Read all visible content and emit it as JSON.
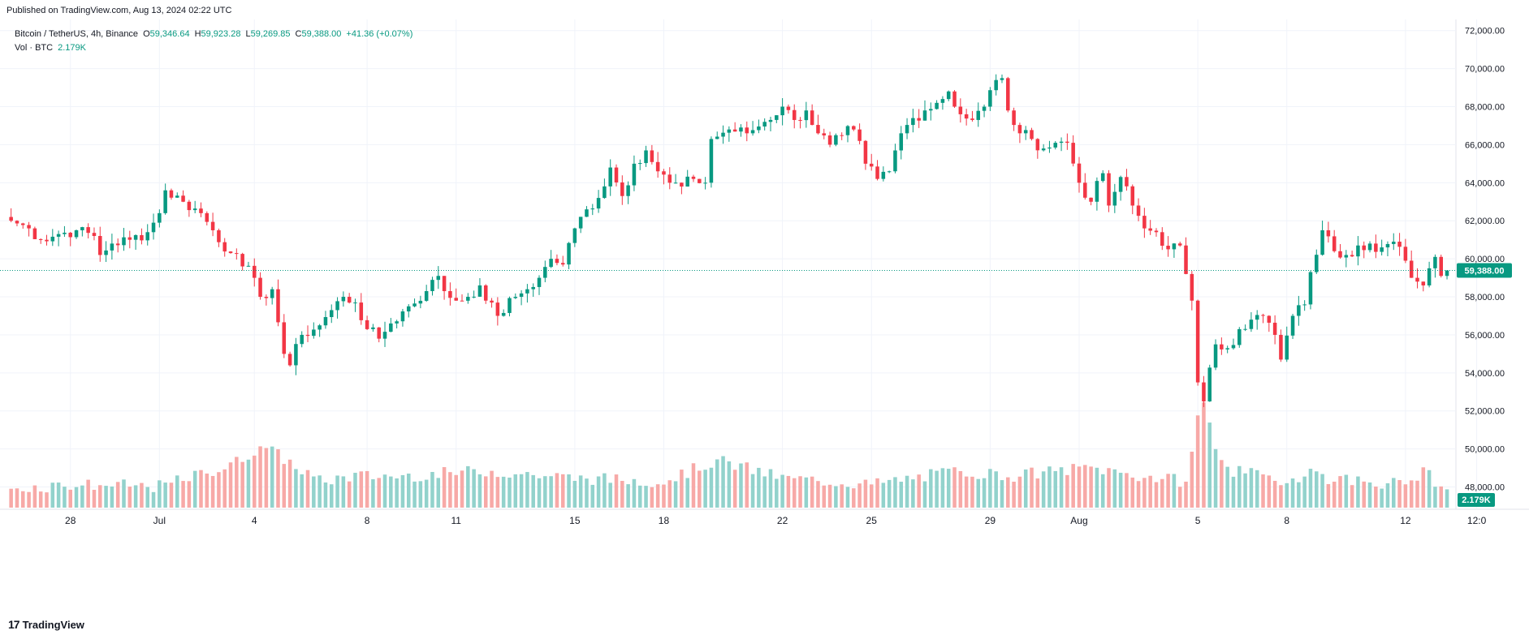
{
  "published": "Published on TradingView.com, Aug 13, 2024 02:22 UTC",
  "legend": {
    "symbol": "Bitcoin / TetherUS, 4h, Binance",
    "o_label": "O",
    "o": "59,346.64",
    "h_label": "H",
    "h": "59,923.28",
    "l_label": "L",
    "l": "59,269.85",
    "c_label": "C",
    "c": "59,388.00",
    "change": "+41.36 (+0.07%)",
    "vol_label": "Vol · BTC",
    "vol": "2.179K"
  },
  "footer_brand": "TradingView",
  "colors": {
    "up": "#089981",
    "down": "#f23645",
    "up_vol": "#92d2cc",
    "down_vol": "#f7a9a7",
    "grid": "#f0f3fa"
  },
  "chart_data": {
    "type": "candlestick",
    "symbol": "Bitcoin / TetherUS",
    "interval": "4h",
    "exchange": "Binance",
    "ylim": [
      47000,
      72500
    ],
    "y_ticks": [
      48000,
      50000,
      52000,
      54000,
      56000,
      58000,
      60000,
      62000,
      64000,
      66000,
      68000,
      70000,
      72000
    ],
    "y_tick_labels": [
      "48,000.00",
      "50,000.00",
      "52,000.00",
      "54,000.00",
      "56,000.00",
      "58,000.00",
      "60,000.00",
      "62,000.00",
      "64,000.00",
      "66,000.00",
      "68,000.00",
      "70,000.00",
      "72,000.00"
    ],
    "x_ticks": [
      {
        "i": 10,
        "label": "28"
      },
      {
        "i": 25,
        "label": "Jul"
      },
      {
        "i": 41,
        "label": "4"
      },
      {
        "i": 60,
        "label": "8"
      },
      {
        "i": 75,
        "label": "11"
      },
      {
        "i": 95,
        "label": "15"
      },
      {
        "i": 110,
        "label": "18"
      },
      {
        "i": 130,
        "label": "22"
      },
      {
        "i": 145,
        "label": "25"
      },
      {
        "i": 165,
        "label": "29"
      },
      {
        "i": 180,
        "label": "Aug"
      },
      {
        "i": 200,
        "label": "5"
      },
      {
        "i": 215,
        "label": "8"
      },
      {
        "i": 235,
        "label": "12"
      },
      {
        "i": 247,
        "label": "12:0"
      }
    ],
    "last_price_label": "59,388.00",
    "last_price": 59388,
    "last_volume_label": "2.179K",
    "close_path": [
      [
        0,
        62000
      ],
      [
        3,
        61600
      ],
      [
        5,
        61000
      ],
      [
        8,
        61300
      ],
      [
        11,
        61500
      ],
      [
        14,
        61200
      ],
      [
        15,
        60200
      ],
      [
        17,
        60800
      ],
      [
        20,
        61000
      ],
      [
        23,
        61400
      ],
      [
        25,
        62400
      ],
      [
        26,
        63600
      ],
      [
        29,
        63000
      ],
      [
        32,
        62400
      ],
      [
        34,
        61500
      ],
      [
        37,
        60300
      ],
      [
        39,
        59600
      ],
      [
        41,
        59000
      ],
      [
        42,
        58000
      ],
      [
        44,
        58400
      ],
      [
        46,
        55000
      ],
      [
        47,
        54400
      ],
      [
        49,
        56000
      ],
      [
        52,
        56500
      ],
      [
        54,
        57300
      ],
      [
        56,
        58000
      ],
      [
        58,
        57700
      ],
      [
        60,
        56300
      ],
      [
        62,
        55800
      ],
      [
        64,
        56600
      ],
      [
        67,
        57500
      ],
      [
        70,
        58300
      ],
      [
        72,
        59100
      ],
      [
        73,
        58300
      ],
      [
        75,
        57800
      ],
      [
        77,
        58000
      ],
      [
        79,
        58600
      ],
      [
        80,
        57800
      ],
      [
        82,
        57000
      ],
      [
        85,
        58000
      ],
      [
        87,
        58400
      ],
      [
        89,
        59000
      ],
      [
        91,
        60000
      ],
      [
        93,
        59700
      ],
      [
        95,
        61600
      ],
      [
        97,
        62600
      ],
      [
        99,
        63200
      ],
      [
        101,
        64800
      ],
      [
        103,
        63300
      ],
      [
        105,
        65000
      ],
      [
        107,
        65700
      ],
      [
        109,
        64600
      ],
      [
        111,
        64000
      ],
      [
        113,
        63800
      ],
      [
        115,
        64200
      ],
      [
        117,
        64000
      ],
      [
        118,
        66300
      ],
      [
        121,
        66800
      ],
      [
        124,
        66600
      ],
      [
        127,
        67200
      ],
      [
        130,
        68000
      ],
      [
        132,
        67300
      ],
      [
        134,
        67800
      ],
      [
        136,
        66600
      ],
      [
        138,
        66000
      ],
      [
        140,
        66500
      ],
      [
        142,
        66800
      ],
      [
        144,
        65000
      ],
      [
        146,
        64200
      ],
      [
        148,
        64600
      ],
      [
        150,
        66600
      ],
      [
        152,
        67400
      ],
      [
        154,
        67800
      ],
      [
        156,
        68200
      ],
      [
        158,
        68800
      ],
      [
        160,
        67600
      ],
      [
        162,
        67300
      ],
      [
        164,
        68000
      ],
      [
        166,
        69400
      ],
      [
        167,
        69500
      ],
      [
        168,
        67800
      ],
      [
        170,
        66600
      ],
      [
        172,
        66300
      ],
      [
        174,
        65800
      ],
      [
        176,
        66100
      ],
      [
        178,
        66100
      ],
      [
        180,
        64000
      ],
      [
        182,
        63000
      ],
      [
        184,
        64500
      ],
      [
        185,
        62800
      ],
      [
        187,
        64300
      ],
      [
        189,
        62800
      ],
      [
        191,
        61600
      ],
      [
        193,
        61400
      ],
      [
        195,
        60500
      ],
      [
        197,
        60700
      ],
      [
        198,
        59200
      ],
      [
        199,
        57800
      ],
      [
        200,
        53500
      ],
      [
        201,
        52500
      ],
      [
        203,
        55500
      ],
      [
        205,
        55300
      ],
      [
        207,
        56300
      ],
      [
        209,
        56800
      ],
      [
        211,
        57000
      ],
      [
        213,
        56000
      ],
      [
        214,
        54700
      ],
      [
        216,
        57000
      ],
      [
        218,
        57600
      ],
      [
        219,
        59300
      ],
      [
        221,
        61500
      ],
      [
        223,
        60400
      ],
      [
        225,
        60200
      ],
      [
        227,
        60700
      ],
      [
        229,
        60800
      ],
      [
        231,
        60600
      ],
      [
        233,
        60900
      ],
      [
        235,
        59900
      ],
      [
        236,
        59000
      ],
      [
        237,
        58800
      ],
      [
        238,
        58600
      ],
      [
        239,
        59500
      ],
      [
        240,
        60100
      ],
      [
        241,
        59100
      ],
      [
        242,
        59350
      ]
    ],
    "wick_range": 900,
    "vol_peaks": [
      [
        0,
        0.18
      ],
      [
        10,
        0.22
      ],
      [
        25,
        0.2
      ],
      [
        37,
        0.4
      ],
      [
        40,
        0.5
      ],
      [
        42,
        0.6
      ],
      [
        45,
        0.5
      ],
      [
        52,
        0.25
      ],
      [
        58,
        0.3
      ],
      [
        66,
        0.3
      ],
      [
        80,
        0.35
      ],
      [
        95,
        0.28
      ],
      [
        110,
        0.25
      ],
      [
        119,
        0.45
      ],
      [
        130,
        0.28
      ],
      [
        145,
        0.22
      ],
      [
        160,
        0.35
      ],
      [
        168,
        0.3
      ],
      [
        182,
        0.38
      ],
      [
        190,
        0.3
      ],
      [
        198,
        0.25
      ],
      [
        199,
        0.5
      ],
      [
        200,
        0.9
      ],
      [
        201,
        1.0
      ],
      [
        203,
        0.55
      ],
      [
        206,
        0.35
      ],
      [
        215,
        0.25
      ],
      [
        219,
        0.35
      ],
      [
        222,
        0.28
      ],
      [
        235,
        0.22
      ],
      [
        238,
        0.35
      ],
      [
        242,
        0.15
      ]
    ]
  }
}
